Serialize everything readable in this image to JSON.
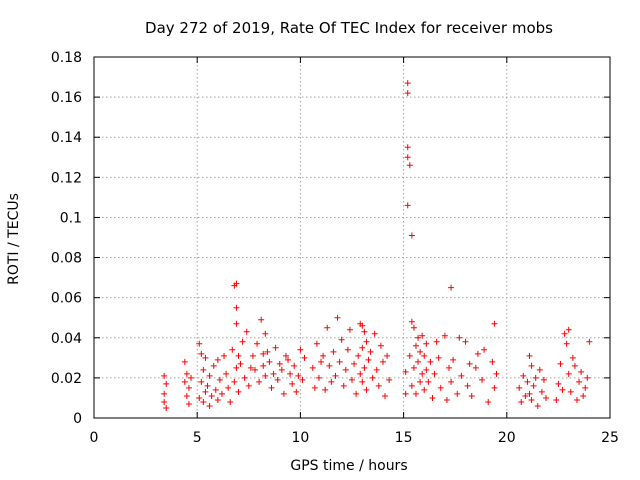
{
  "chart_data": {
    "type": "scatter",
    "title": "Day 272 of 2019, Rate Of TEC Index for receiver mobs",
    "xlabel": "GPS time / hours",
    "ylabel": "ROTI / TECUs",
    "xlim": [
      0,
      25
    ],
    "ylim": [
      0,
      0.18
    ],
    "xticks": [
      "0",
      "5",
      "10",
      "15",
      "20",
      "25"
    ],
    "xtick_values": [
      0,
      5,
      10,
      15,
      20,
      25
    ],
    "yticks": [
      "0",
      "0.02",
      "0.04",
      "0.06",
      "0.08",
      "0.1",
      "0.12",
      "0.14",
      "0.16",
      "0.18"
    ],
    "ytick_values": [
      0,
      0.02,
      0.04,
      0.06,
      0.08,
      0.1,
      0.12,
      0.14,
      0.16,
      0.18
    ],
    "grid": true,
    "marker": "+",
    "color": "#ff0000",
    "series": [
      {
        "x": [
          3.4,
          3.4,
          3.4,
          3.5,
          3.5,
          4.4,
          4.4,
          4.5,
          4.5,
          4.6,
          4.6,
          4.7,
          5.1,
          5.1,
          5.2,
          5.2,
          5.3,
          5.3,
          5.4,
          5.4,
          5.5,
          5.6,
          5.6,
          5.7,
          5.8,
          5.9,
          6.0,
          6.0,
          6.1,
          6.2,
          6.3,
          6.4,
          6.5,
          6.6,
          6.7,
          6.8,
          6.8,
          6.9,
          6.9,
          6.9,
          6.9,
          7.0,
          7.0,
          7.1,
          7.2,
          7.3,
          7.4,
          7.5,
          7.6,
          7.7,
          7.8,
          7.9,
          8.0,
          8.1,
          8.2,
          8.2,
          8.3,
          8.3,
          8.4,
          8.5,
          8.6,
          8.7,
          8.8,
          8.9,
          9.0,
          9.1,
          9.2,
          9.3,
          9.4,
          9.5,
          9.6,
          9.7,
          9.8,
          9.9,
          10.0,
          10.1,
          10.2,
          10.6,
          10.7,
          10.8,
          10.9,
          11.0,
          11.1,
          11.2,
          11.3,
          11.4,
          11.5,
          11.6,
          11.7,
          11.8,
          11.9,
          12.0,
          12.1,
          12.2,
          12.3,
          12.4,
          12.5,
          12.6,
          12.7,
          12.8,
          12.9,
          12.9,
          13.0,
          13.0,
          13.0,
          13.1,
          13.1,
          13.2,
          13.2,
          13.3,
          13.4,
          13.5,
          13.6,
          13.7,
          13.8,
          13.9,
          14.0,
          14.1,
          14.2,
          14.3,
          15.1,
          15.1,
          15.2,
          15.2,
          15.2,
          15.2,
          15.2,
          15.3,
          15.3,
          15.4,
          15.4,
          15.4,
          15.5,
          15.5,
          15.6,
          15.6,
          15.7,
          15.7,
          15.8,
          15.8,
          15.9,
          15.9,
          16.0,
          16.0,
          16.1,
          16.1,
          16.2,
          16.3,
          16.4,
          16.5,
          16.6,
          16.7,
          16.8,
          17.0,
          17.1,
          17.2,
          17.3,
          17.3,
          17.4,
          17.6,
          17.7,
          17.8,
          18.0,
          18.1,
          18.2,
          18.3,
          18.5,
          18.6,
          18.8,
          18.9,
          19.1,
          19.3,
          19.4,
          19.4,
          19.5,
          20.6,
          20.7,
          20.8,
          20.9,
          21.0,
          21.1,
          21.1,
          21.2,
          21.2,
          21.3,
          21.4,
          21.5,
          21.6,
          21.7,
          21.8,
          21.9,
          22.4,
          22.5,
          22.6,
          22.7,
          22.8,
          22.9,
          23.0,
          23.0,
          23.1,
          23.2,
          23.3,
          23.4,
          23.5,
          23.6,
          23.7,
          23.8,
          23.9,
          24.0
        ],
        "y": [
          0.021,
          0.012,
          0.008,
          0.017,
          0.005,
          0.028,
          0.018,
          0.011,
          0.022,
          0.015,
          0.007,
          0.02,
          0.037,
          0.01,
          0.032,
          0.018,
          0.008,
          0.024,
          0.013,
          0.03,
          0.016,
          0.006,
          0.021,
          0.011,
          0.026,
          0.014,
          0.009,
          0.029,
          0.019,
          0.012,
          0.031,
          0.022,
          0.015,
          0.008,
          0.034,
          0.066,
          0.018,
          0.067,
          0.055,
          0.047,
          0.025,
          0.031,
          0.013,
          0.027,
          0.038,
          0.02,
          0.043,
          0.016,
          0.025,
          0.031,
          0.024,
          0.037,
          0.018,
          0.049,
          0.032,
          0.026,
          0.042,
          0.021,
          0.033,
          0.028,
          0.015,
          0.022,
          0.035,
          0.019,
          0.027,
          0.024,
          0.012,
          0.031,
          0.029,
          0.022,
          0.017,
          0.026,
          0.013,
          0.021,
          0.034,
          0.019,
          0.03,
          0.025,
          0.015,
          0.037,
          0.02,
          0.028,
          0.031,
          0.014,
          0.045,
          0.026,
          0.018,
          0.033,
          0.021,
          0.05,
          0.028,
          0.039,
          0.016,
          0.024,
          0.034,
          0.044,
          0.019,
          0.027,
          0.012,
          0.031,
          0.047,
          0.022,
          0.046,
          0.035,
          0.018,
          0.043,
          0.025,
          0.038,
          0.014,
          0.029,
          0.033,
          0.02,
          0.042,
          0.024,
          0.016,
          0.036,
          0.028,
          0.011,
          0.031,
          0.019,
          0.012,
          0.023,
          0.167,
          0.162,
          0.135,
          0.13,
          0.106,
          0.126,
          0.031,
          0.091,
          0.048,
          0.016,
          0.045,
          0.025,
          0.036,
          0.012,
          0.028,
          0.04,
          0.018,
          0.033,
          0.022,
          0.041,
          0.014,
          0.031,
          0.024,
          0.037,
          0.018,
          0.028,
          0.01,
          0.022,
          0.038,
          0.03,
          0.015,
          0.041,
          0.009,
          0.025,
          0.065,
          0.018,
          0.029,
          0.012,
          0.04,
          0.021,
          0.038,
          0.016,
          0.027,
          0.011,
          0.025,
          0.032,
          0.019,
          0.034,
          0.008,
          0.028,
          0.047,
          0.015,
          0.022,
          0.015,
          0.008,
          0.021,
          0.011,
          0.018,
          0.031,
          0.012,
          0.026,
          0.009,
          0.016,
          0.02,
          0.006,
          0.024,
          0.013,
          0.019,
          0.01,
          0.009,
          0.017,
          0.027,
          0.014,
          0.042,
          0.037,
          0.044,
          0.022,
          0.013,
          0.03,
          0.026,
          0.009,
          0.018,
          0.023,
          0.011,
          0.015,
          0.02,
          0.038
        ]
      }
    ]
  }
}
